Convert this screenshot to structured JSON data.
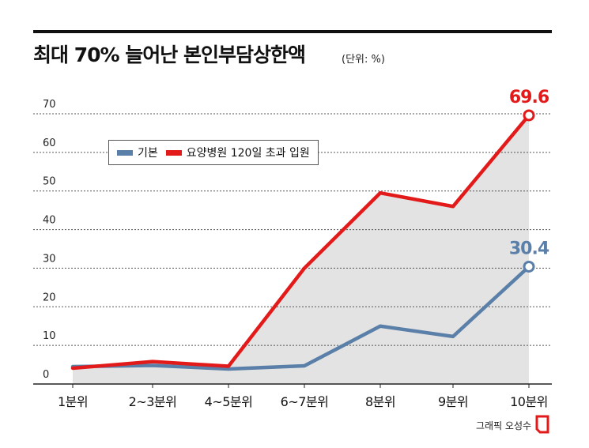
{
  "header": {
    "title": "최대 70% 늘어난 본인부담상한액",
    "unit": "(단위: %)"
  },
  "credit": "그래픽 오성수",
  "chart_data": {
    "type": "line",
    "categories": [
      "1분위",
      "2~3분위",
      "4~5분위",
      "6~7분위",
      "8분위",
      "9분위",
      "10분위"
    ],
    "ylim": [
      0,
      70
    ],
    "yticks": [
      "0",
      "10",
      "20",
      "30",
      "40",
      "50",
      "60",
      "70"
    ],
    "grid": true,
    "series": [
      {
        "name": "기본",
        "color": "#5a7fa8",
        "values": [
          4.5,
          4.8,
          3.9,
          4.7,
          15,
          12.3,
          30.4
        ],
        "end_label": "30.4"
      },
      {
        "name": "요양병원 120일 초과 입원",
        "color": "#e31a1a",
        "values": [
          4.1,
          5.8,
          4.6,
          30,
          49.5,
          46,
          69.6
        ],
        "end_label": "69.6"
      }
    ],
    "legend_position": "top-left"
  }
}
